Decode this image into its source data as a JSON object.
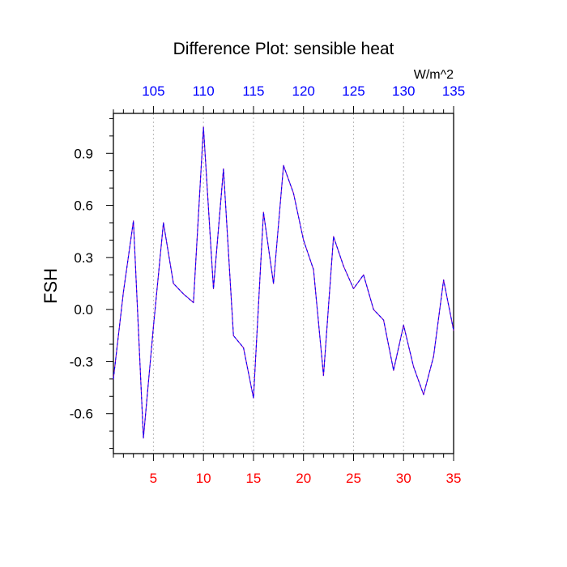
{
  "chart_data": {
    "type": "line",
    "title": "Difference Plot: sensible heat",
    "ylabel": "FSH",
    "units_label": "W/m^2",
    "xlim": [
      1,
      35
    ],
    "ylim": [
      -0.83,
      1.13
    ],
    "bottom_axis": {
      "ticks": [
        5,
        10,
        15,
        20,
        25,
        30,
        35
      ],
      "tick_labels": [
        "5",
        "10",
        "15",
        "20",
        "25",
        "30",
        "35"
      ],
      "color": "#ff0000"
    },
    "top_axis": {
      "ticks": [
        105,
        110,
        115,
        120,
        125,
        130,
        135
      ],
      "tick_labels": [
        "105",
        "110",
        "115",
        "120",
        "125",
        "130",
        "135"
      ],
      "offset": 100,
      "color": "#0000ff"
    },
    "left_axis": {
      "ticks": [
        -0.6,
        -0.3,
        0.0,
        0.3,
        0.6,
        0.9
      ],
      "tick_labels": [
        "-0.6",
        "-0.3",
        "0.0",
        "0.3",
        "0.6",
        "0.9"
      ]
    },
    "grid": "vertical dotted",
    "series": [
      {
        "x": [
          1,
          2,
          3,
          4,
          5,
          6,
          7,
          8,
          9,
          10,
          11,
          12,
          13,
          14,
          15,
          16,
          17,
          18,
          19,
          20,
          21,
          22,
          23,
          24,
          25,
          26,
          27,
          28,
          29,
          30,
          31,
          32,
          33,
          34,
          35
        ],
        "values": [
          -0.4,
          0.1,
          0.51,
          -0.74,
          -0.1,
          0.5,
          0.15,
          0.09,
          0.04,
          1.05,
          0.12,
          0.81,
          -0.15,
          -0.22,
          -0.51,
          0.56,
          0.15,
          0.83,
          0.67,
          0.4,
          0.23,
          -0.38,
          0.42,
          0.25,
          0.12,
          0.2,
          0.0,
          -0.06,
          -0.35,
          -0.09,
          -0.33,
          -0.49,
          -0.27,
          0.17,
          -0.12
        ],
        "color": "#7a00c0",
        "dash_color": "#0000ff"
      }
    ]
  }
}
